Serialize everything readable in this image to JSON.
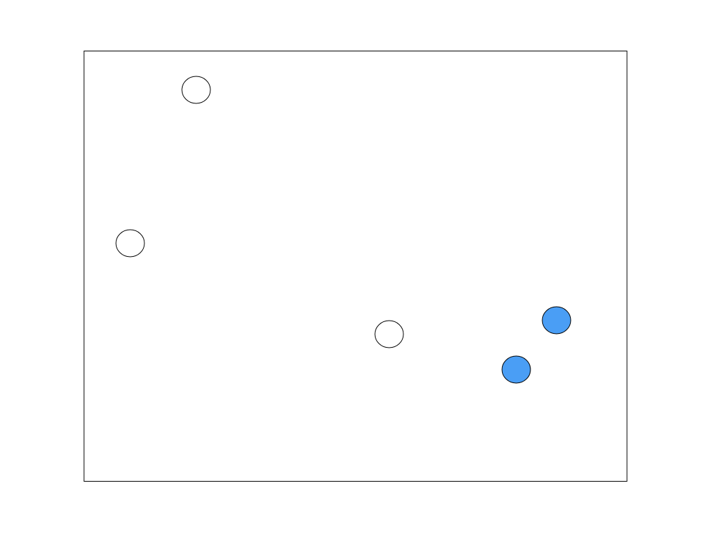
{
  "canvas": {
    "background_color": "#ffffff",
    "border_color": "#000000"
  },
  "targets": {
    "outline_color": "#000000",
    "hollow_fill": "#ffffff",
    "active_fill": "#4a9ef5",
    "items": [
      {
        "name": "hollow-circle-1",
        "state": "empty"
      },
      {
        "name": "hollow-circle-2",
        "state": "empty"
      },
      {
        "name": "hollow-circle-3",
        "state": "empty"
      },
      {
        "name": "filled-circle-1",
        "state": "filled"
      },
      {
        "name": "filled-circle-2",
        "state": "filled"
      }
    ]
  }
}
